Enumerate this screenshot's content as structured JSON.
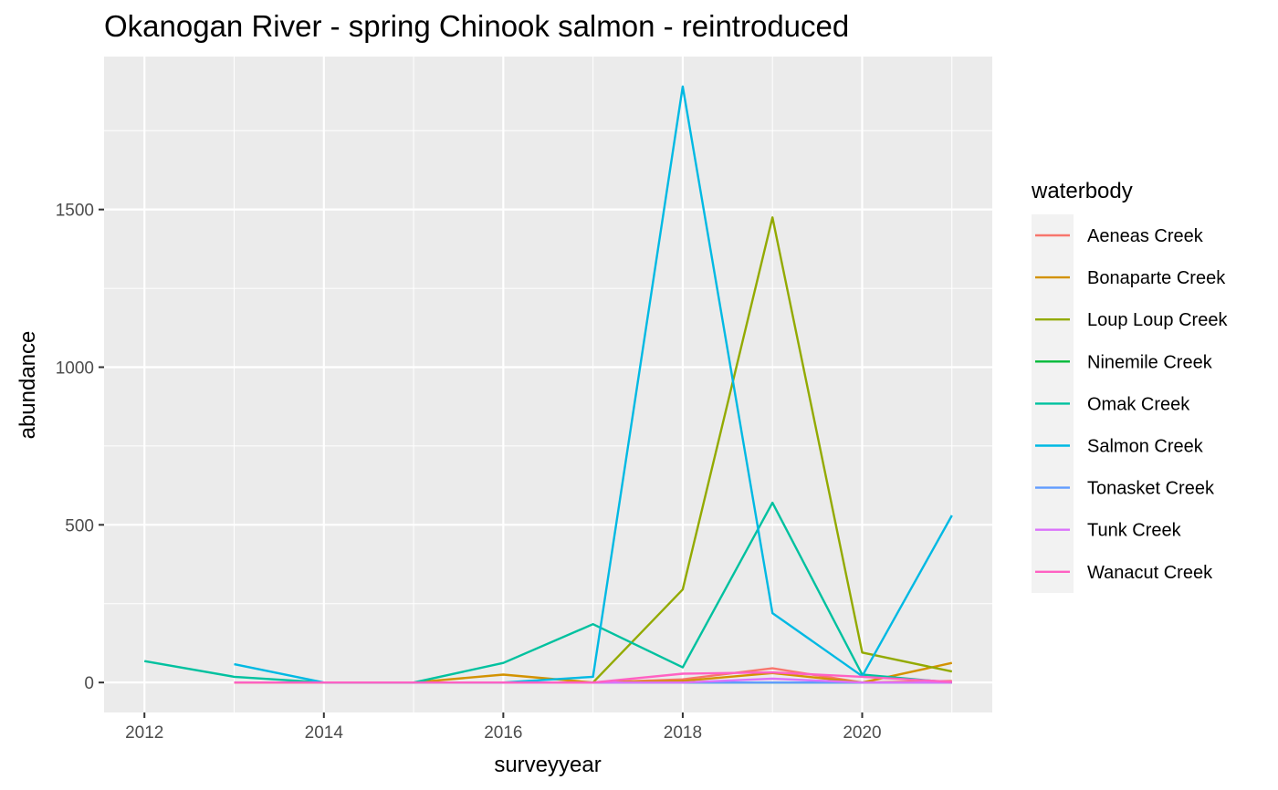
{
  "chart_data": {
    "type": "line",
    "title": "Okanogan River - spring Chinook salmon - reintroduced",
    "xlabel": "surveyyear",
    "ylabel": "abundance",
    "xlim": [
      2011.55,
      2021.45
    ],
    "ylim": [
      -95,
      1985
    ],
    "x_ticks": [
      2012,
      2014,
      2016,
      2018,
      2020
    ],
    "y_ticks": [
      0,
      500,
      1000,
      1500
    ],
    "grid": true,
    "legend": {
      "title": "waterbody",
      "placement": "right"
    },
    "series": [
      {
        "name": "Aeneas Creek",
        "color": "#F8766D",
        "points": [
          [
            2017,
            0
          ],
          [
            2018,
            10
          ],
          [
            2019,
            45
          ],
          [
            2020,
            0
          ],
          [
            2021,
            5
          ]
        ]
      },
      {
        "name": "Bonaparte Creek",
        "color": "#D39200",
        "points": [
          [
            2013,
            0
          ],
          [
            2014,
            0
          ],
          [
            2015,
            0
          ],
          [
            2016,
            25
          ],
          [
            2017,
            0
          ],
          [
            2018,
            5
          ],
          [
            2019,
            30
          ],
          [
            2020,
            0
          ],
          [
            2021,
            62
          ]
        ]
      },
      {
        "name": "Loup Loup Creek",
        "color": "#93AA00",
        "points": [
          [
            2017,
            0
          ],
          [
            2018,
            295
          ],
          [
            2019,
            1475
          ],
          [
            2020,
            95
          ],
          [
            2021,
            35
          ]
        ]
      },
      {
        "name": "Ninemile Creek",
        "color": "#00BA38",
        "points": [
          [
            2017,
            0
          ],
          [
            2018,
            0
          ],
          [
            2019,
            0
          ],
          [
            2020,
            0
          ],
          [
            2021,
            0
          ]
        ]
      },
      {
        "name": "Omak Creek",
        "color": "#00C19F",
        "points": [
          [
            2012,
            68
          ],
          [
            2013,
            18
          ],
          [
            2014,
            0
          ],
          [
            2015,
            0
          ],
          [
            2016,
            62
          ],
          [
            2017,
            185
          ],
          [
            2018,
            48
          ],
          [
            2019,
            570
          ],
          [
            2020,
            25
          ],
          [
            2021,
            0
          ]
        ]
      },
      {
        "name": "Salmon Creek",
        "color": "#00B9E3",
        "points": [
          [
            2013,
            58
          ],
          [
            2014,
            0
          ],
          [
            2015,
            0
          ],
          [
            2016,
            0
          ],
          [
            2017,
            18
          ],
          [
            2018,
            1890
          ],
          [
            2019,
            220
          ],
          [
            2020,
            20
          ],
          [
            2021,
            530
          ]
        ]
      },
      {
        "name": "Tonasket Creek",
        "color": "#619CFF",
        "points": [
          [
            2016,
            0
          ],
          [
            2017,
            0
          ],
          [
            2018,
            0
          ],
          [
            2019,
            0
          ],
          [
            2020,
            0
          ],
          [
            2021,
            0
          ]
        ]
      },
      {
        "name": "Tunk Creek",
        "color": "#DB72FB",
        "points": [
          [
            2016,
            0
          ],
          [
            2017,
            0
          ],
          [
            2018,
            0
          ],
          [
            2019,
            12
          ],
          [
            2020,
            0
          ],
          [
            2021,
            0
          ]
        ]
      },
      {
        "name": "Wanacut Creek",
        "color": "#FF61C3",
        "points": [
          [
            2013,
            0
          ],
          [
            2014,
            0
          ],
          [
            2015,
            0
          ],
          [
            2016,
            0
          ],
          [
            2017,
            0
          ],
          [
            2018,
            28
          ],
          [
            2019,
            32
          ],
          [
            2020,
            18
          ],
          [
            2021,
            2
          ]
        ]
      }
    ]
  }
}
